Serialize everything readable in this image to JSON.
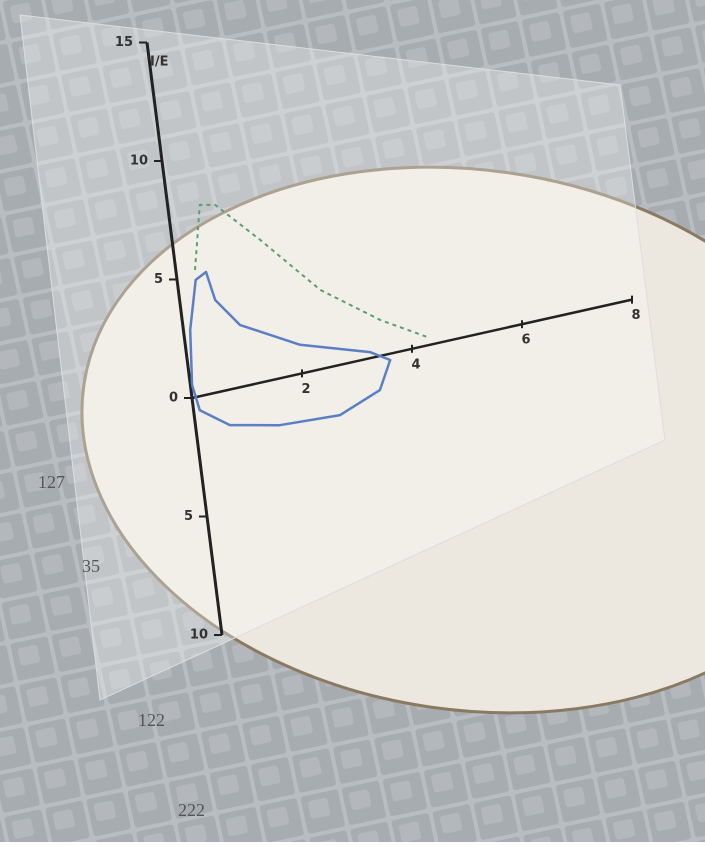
{
  "chart_data": {
    "type": "line",
    "y_label": "I/E",
    "xlim": [
      0,
      8
    ],
    "xticks": [
      2,
      4,
      6,
      8
    ],
    "ylim": [
      -10,
      15
    ],
    "yticks": [
      {
        "value": -10,
        "label": "10"
      },
      {
        "value": -5,
        "label": "5"
      },
      0,
      5,
      10,
      15
    ],
    "series": [
      {
        "color": "#5b7fc4",
        "dashed": false,
        "x": [
          0.03,
          0.12,
          0.33,
          0.53,
          0.63,
          1.01,
          2.03,
          3.25,
          3.59,
          3.34,
          2.58,
          1.49,
          0.61,
          0.11,
          0.03
        ],
        "values": [
          0.53,
          2.81,
          4.81,
          5.04,
          3.81,
          2.56,
          1.19,
          0.25,
          -0.26,
          -1.4,
          -2.06,
          -1.92,
          -1.46,
          -0.57,
          0.53
        ]
      },
      {
        "color": "#5aa06e",
        "dashed": true,
        "x": [
          0.34,
          0.57,
          0.84,
          1.56,
          2.51,
          3.5,
          4.34
        ],
        "values": [
          5.22,
          7.85,
          7.71,
          5.86,
          3.26,
          1.48,
          0.28
        ]
      }
    ],
    "annotations": [
      "127",
      "35",
      "122",
      "222"
    ]
  }
}
